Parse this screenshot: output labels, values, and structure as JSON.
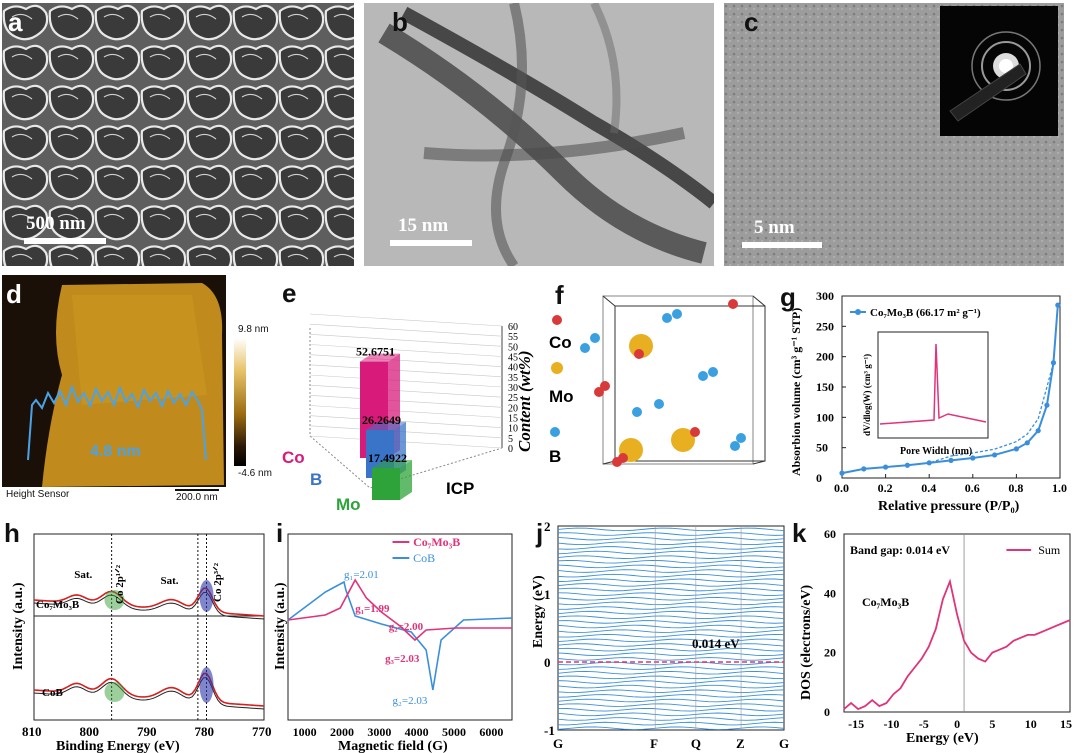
{
  "panels": {
    "a": {
      "label": "a",
      "scale": "500 nm"
    },
    "b": {
      "label": "b",
      "scale": "15 nm"
    },
    "c": {
      "label": "c",
      "scale": "5 nm"
    },
    "d": {
      "label": "d",
      "scale": "200.0 nm",
      "sensor": "Height Sensor",
      "thickness": "4.8 nm",
      "colorbar": {
        "max": "9.8 nm",
        "min": "-4.6 nm"
      }
    },
    "e": {
      "label": "e",
      "zlabel": "Content (wt%)",
      "xlabel": "ICP",
      "elements": [
        "Co",
        "B",
        "Mo"
      ],
      "ticks": [
        "0",
        "5",
        "10",
        "15",
        "20",
        "25",
        "30",
        "35",
        "40",
        "45",
        "50",
        "55",
        "60"
      ]
    },
    "f": {
      "label": "f",
      "legend": [
        "Co",
        "Mo",
        "B"
      ]
    },
    "g": {
      "label": "g",
      "xlabel": "Relative pressure (P/P₀)",
      "ylabel": "Absorbion volume (cm³ g⁻¹ STP)",
      "legend": "Co₇Mo₃B (66.17 m² g⁻¹)",
      "inset": {
        "xlabel": "Pore Width (nm)",
        "ylabel": "dV/dlog(W) (cm³ g⁻¹)"
      }
    },
    "h": {
      "label": "h",
      "xlabel": "Binding Energy (eV)",
      "ylabel": "Intensity (a.u.)",
      "top_sample": "Co₇Mo₃B",
      "bottom_sample": "CoB",
      "sat": "Sat.",
      "p12": "Co 2p¹ᐟ²",
      "p32": "Co 2p³ᐟ²"
    },
    "i": {
      "label": "i",
      "xlabel": "Magnetic field (G)",
      "ylabel": "Intensity (a.u.)",
      "legend": [
        "Co₇Mo₃B",
        "CoB"
      ],
      "gvals_pink": [
        "g₁=1.99",
        "g₂=2.00",
        "g₃=2.03"
      ],
      "gvals_blue": [
        "g₁=2.01",
        "g₂=2.03"
      ]
    },
    "j": {
      "label": "j",
      "ylabel": "Energy (eV)",
      "gap": "0.014 eV",
      "kpath": [
        "G",
        "F",
        "Q",
        "Z",
        "G"
      ]
    },
    "k": {
      "label": "k",
      "xlabel": "Energy (eV)",
      "ylabel": "DOS (electrons/eV)",
      "gap": "Band gap: 0.014 eV",
      "legend": "Sum",
      "sample": "Co₇Mo₃B"
    }
  },
  "colors": {
    "co": "#d81b7a",
    "b": "#3a74c8",
    "mo": "#2ea33a",
    "blue_curve": "#3a8fdd",
    "pink_curve": "#e0337a"
  },
  "chart_data": [
    {
      "type": "bar",
      "id": "e",
      "categories": [
        "Co",
        "B",
        "Mo"
      ],
      "values": [
        52.6751,
        26.2649,
        17.4922
      ],
      "zlabel": "Content (wt%)",
      "xlabel": "ICP",
      "zlim": [
        0,
        60
      ]
    },
    {
      "type": "line",
      "id": "g",
      "xlabel": "Relative pressure (P/P₀)",
      "ylabel": "Absorbion volume (cm³ g⁻¹ STP)",
      "xlim": [
        0,
        1
      ],
      "ylim": [
        0,
        300
      ],
      "series": [
        {
          "name": "Co₇Mo₃B (66.17 m² g⁻¹)",
          "x": [
            0.0,
            0.1,
            0.2,
            0.3,
            0.4,
            0.5,
            0.6,
            0.7,
            0.8,
            0.85,
            0.9,
            0.94,
            0.97,
            0.99
          ],
          "y": [
            8,
            15,
            18,
            21,
            25,
            29,
            33,
            38,
            48,
            58,
            78,
            120,
            190,
            285
          ]
        }
      ]
    },
    {
      "type": "line",
      "id": "i",
      "xlabel": "Magnetic field (G)",
      "ylabel": "Intensity (a.u.)",
      "xlim": [
        500,
        6500
      ],
      "series": [
        {
          "name": "Co₇Mo₃B"
        },
        {
          "name": "CoB"
        }
      ]
    },
    {
      "type": "line",
      "id": "k",
      "xlabel": "Energy (eV)",
      "ylabel": "DOS (electrons/eV)",
      "xlim": [
        -17,
        15
      ],
      "ylim": [
        0,
        60
      ],
      "series": [
        {
          "name": "Sum",
          "x": [
            -17,
            -16,
            -15,
            -14,
            -13,
            -12,
            -11,
            -10,
            -9,
            -8,
            -7,
            -6,
            -5,
            -4,
            -3,
            -2,
            -1,
            0,
            1,
            2,
            3,
            4,
            5,
            6,
            7,
            8,
            9,
            10,
            11,
            12,
            13,
            14,
            15
          ],
          "y": [
            1,
            3,
            1,
            2,
            4,
            2,
            3,
            6,
            8,
            12,
            15,
            18,
            22,
            28,
            38,
            44,
            33,
            24,
            20,
            18,
            17,
            20,
            21,
            22,
            24,
            25,
            26,
            26,
            27,
            28,
            29,
            30,
            31
          ]
        }
      ]
    }
  ]
}
